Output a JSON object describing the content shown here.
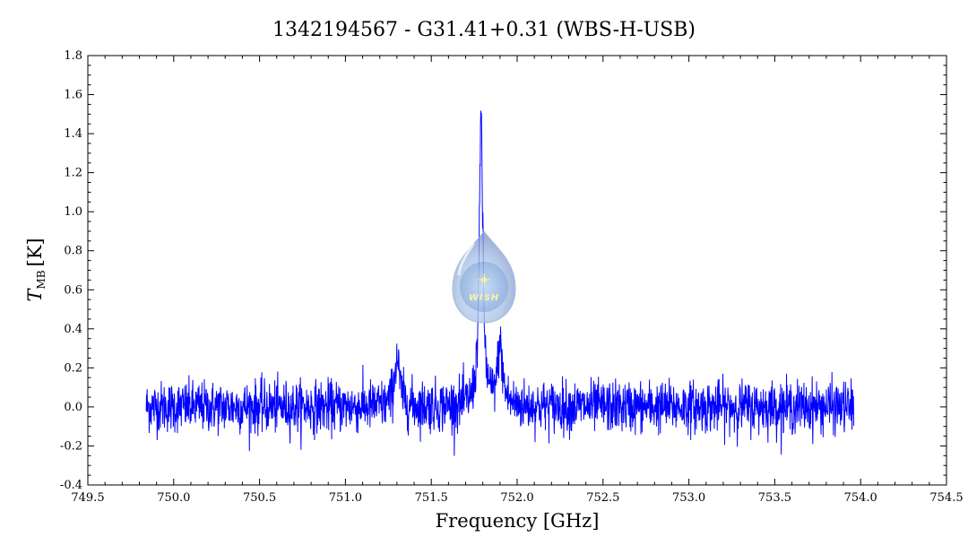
{
  "chart_data": {
    "type": "line",
    "title": "1342194567 - G31.41+0.31 (WBS-H-USB)",
    "xlabel": "Frequency [GHz]",
    "ylabel_main": "T",
    "ylabel_sub": "MB",
    "ylabel_unit": "[K]",
    "xlim": [
      749.5,
      754.5
    ],
    "ylim": [
      -0.4,
      1.8
    ],
    "x_ticks": [
      "749.5",
      "750.0",
      "750.5",
      "751.0",
      "751.5",
      "752.0",
      "752.5",
      "753.0",
      "753.5",
      "754.0",
      "754.5"
    ],
    "y_ticks": [
      "-0.4",
      "-0.2",
      "0.0",
      "0.2",
      "0.4",
      "0.6",
      "0.8",
      "1.0",
      "1.2",
      "1.4",
      "1.6",
      "1.8"
    ],
    "grid": false,
    "series": [
      {
        "color": "#0000ff",
        "x_start": 749.84,
        "x_end": 753.96,
        "noise_rms": 0.065,
        "baseline": 0.0,
        "features": [
          {
            "x": 751.3,
            "peak": 0.25
          },
          {
            "x": 751.79,
            "peak": 1.5
          },
          {
            "x": 751.9,
            "peak": 0.3
          }
        ]
      }
    ],
    "watermark_text": "WISH"
  }
}
